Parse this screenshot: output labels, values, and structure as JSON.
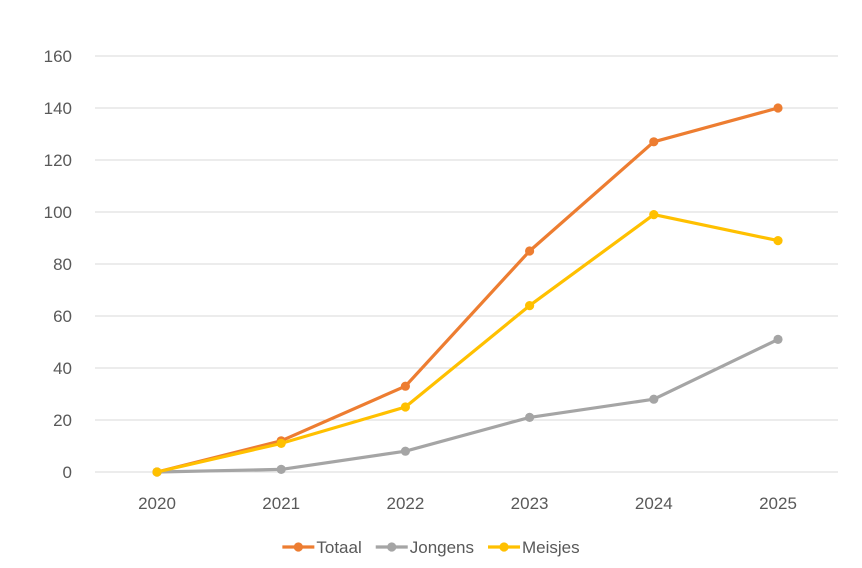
{
  "chart_data": {
    "type": "line",
    "title": "",
    "xlabel": "",
    "ylabel": "",
    "categories": [
      "2020",
      "2021",
      "2022",
      "2023",
      "2024",
      "2025"
    ],
    "ylim": [
      0,
      160
    ],
    "yticks": [
      0,
      20,
      40,
      60,
      80,
      100,
      120,
      140,
      160
    ],
    "grid": true,
    "legend_position": "bottom",
    "series": [
      {
        "name": "Totaal",
        "color": "#ED7D31",
        "values": [
          0,
          12,
          33,
          85,
          127,
          140
        ]
      },
      {
        "name": "Jongens",
        "color": "#A5A5A5",
        "values": [
          0,
          1,
          8,
          21,
          28,
          51
        ]
      },
      {
        "name": "Meisjes",
        "color": "#FFC000",
        "values": [
          0,
          11,
          25,
          64,
          99,
          89
        ]
      }
    ]
  }
}
